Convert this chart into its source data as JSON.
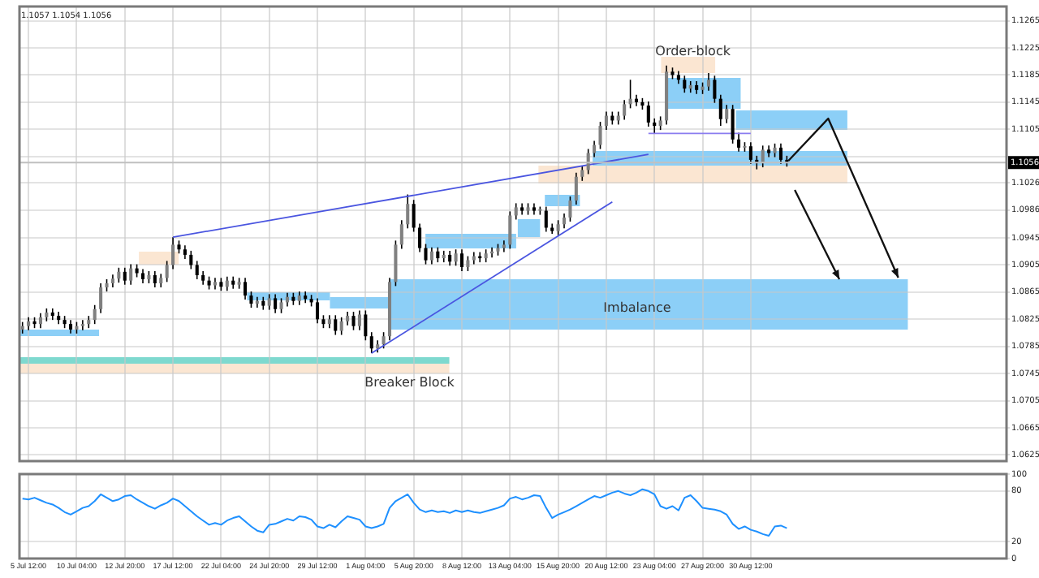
{
  "chart_data": [
    {
      "type": "candlestick",
      "title": "1.1057 1.1054 1.1056",
      "grid": true,
      "tick_labels": "y",
      "categories": [
        null,
        null,
        null,
        null,
        null,
        null,
        null,
        null,
        null,
        null,
        null,
        null,
        null,
        null,
        null,
        null,
        null,
        null,
        null,
        null,
        null,
        null,
        null,
        null,
        null,
        null,
        null,
        null,
        null,
        null,
        null,
        null,
        null,
        null,
        null,
        null,
        null,
        null,
        null,
        null,
        null,
        null,
        null,
        null,
        null,
        null,
        null,
        null,
        null,
        null,
        null,
        null,
        null,
        null,
        null,
        null,
        null,
        null,
        null,
        null,
        null,
        null,
        null,
        null,
        null,
        null,
        null,
        null,
        null,
        null,
        null,
        null,
        null,
        null,
        null,
        null,
        null,
        null,
        null,
        null,
        null,
        null,
        null,
        null,
        null,
        null,
        null,
        null,
        null,
        null,
        null,
        null,
        null,
        null,
        null,
        null,
        null,
        null,
        null,
        null,
        null,
        null,
        null,
        null,
        null,
        null,
        null,
        null,
        null,
        null,
        null,
        null,
        null,
        null,
        null,
        null,
        null,
        null,
        null,
        null,
        null,
        null,
        null,
        null,
        null,
        null,
        null,
        null,
        null,
        null,
        null,
        null,
        null,
        null,
        null,
        null,
        null,
        null,
        null,
        null,
        null,
        null,
        null,
        null,
        null,
        null,
        null,
        null,
        null,
        null,
        null,
        null,
        null,
        null,
        null,
        null,
        null,
        null,
        null,
        null,
        null,
        null,
        null,
        null
      ],
      "ohlc": [
        [
          1.081,
          1.0821,
          1.0804,
          1.0815
        ],
        [
          1.0815,
          1.0828,
          1.0809,
          1.0822
        ],
        [
          1.0822,
          1.0828,
          1.0812,
          1.0818
        ],
        [
          1.0818,
          1.0834,
          1.0812,
          1.0828
        ],
        [
          1.0828,
          1.0841,
          1.0822,
          1.0835
        ],
        [
          1.0835,
          1.0841,
          1.0824,
          1.083
        ],
        [
          1.083,
          1.0836,
          1.0818,
          1.0824
        ],
        [
          1.0824,
          1.083,
          1.0812,
          1.0818
        ],
        [
          1.0818,
          1.0824,
          1.0804,
          1.081
        ],
        [
          1.081,
          1.0821,
          1.0804,
          1.0815
        ],
        [
          1.0815,
          1.0824,
          1.0809,
          1.0818
        ],
        [
          1.0818,
          1.083,
          1.0812,
          1.0824
        ],
        [
          1.0824,
          1.0846,
          1.0818,
          1.084
        ],
        [
          1.084,
          1.0878,
          1.0834,
          1.0872
        ],
        [
          1.0872,
          1.0884,
          1.0866,
          1.0878
        ],
        [
          1.0878,
          1.0891,
          1.0872,
          1.0885
        ],
        [
          1.0885,
          1.0901,
          1.0879,
          1.0895
        ],
        [
          1.0895,
          1.0901,
          1.0876,
          1.0882
        ],
        [
          1.0882,
          1.0906,
          1.0876,
          1.09
        ],
        [
          1.09,
          1.0906,
          1.0887,
          1.0893
        ],
        [
          1.0893,
          1.0899,
          1.0878,
          1.0884
        ],
        [
          1.0884,
          1.0896,
          1.0878,
          1.089
        ],
        [
          1.089,
          1.0896,
          1.0872,
          1.0878
        ],
        [
          1.0878,
          1.0892,
          1.0872,
          1.0886
        ],
        [
          1.0886,
          1.0911,
          1.088,
          1.0905
        ],
        [
          1.0905,
          1.0946,
          1.0899,
          1.0935
        ],
        [
          1.0935,
          1.0941,
          1.0922,
          1.0928
        ],
        [
          1.0928,
          1.0934,
          1.0914,
          1.092
        ],
        [
          1.092,
          1.0926,
          1.0899,
          1.0905
        ],
        [
          1.0905,
          1.0911,
          1.0884,
          1.089
        ],
        [
          1.089,
          1.0896,
          1.0876,
          1.0882
        ],
        [
          1.0882,
          1.0888,
          1.0869,
          1.0875
        ],
        [
          1.0875,
          1.0886,
          1.0869,
          1.088
        ],
        [
          1.088,
          1.0886,
          1.0867,
          1.0873
        ],
        [
          1.0873,
          1.0888,
          1.0867,
          1.0882
        ],
        [
          1.0882,
          1.0888,
          1.087,
          1.0876
        ],
        [
          1.0876,
          1.0886,
          1.087,
          1.088
        ],
        [
          1.088,
          1.0886,
          1.0854,
          1.086
        ],
        [
          1.086,
          1.0866,
          1.0842,
          1.0848
        ],
        [
          1.0848,
          1.0858,
          1.0842,
          1.0852
        ],
        [
          1.0852,
          1.0858,
          1.0839,
          1.0845
        ],
        [
          1.0845,
          1.0862,
          1.0839,
          1.0856
        ],
        [
          1.0856,
          1.0862,
          1.0834,
          1.084
        ],
        [
          1.084,
          1.0856,
          1.0834,
          1.085
        ],
        [
          1.085,
          1.0864,
          1.0844,
          1.0858
        ],
        [
          1.0858,
          1.0864,
          1.0846,
          1.0852
        ],
        [
          1.0852,
          1.0866,
          1.0846,
          1.086
        ],
        [
          1.086,
          1.0866,
          1.0849,
          1.0855
        ],
        [
          1.0855,
          1.0861,
          1.0844,
          1.085
        ],
        [
          1.085,
          1.0856,
          1.0819,
          1.0825
        ],
        [
          1.0825,
          1.0831,
          1.0812,
          1.0818
        ],
        [
          1.0818,
          1.0831,
          1.0812,
          1.0825
        ],
        [
          1.0825,
          1.0831,
          1.0802,
          1.0808
        ],
        [
          1.0808,
          1.0828,
          1.0802,
          1.0822
        ],
        [
          1.0822,
          1.0836,
          1.0816,
          1.083
        ],
        [
          1.083,
          1.0836,
          1.0809,
          1.0815
        ],
        [
          1.0815,
          1.0838,
          1.0809,
          1.0832
        ],
        [
          1.0832,
          1.0838,
          1.0794,
          1.08
        ],
        [
          1.08,
          1.0806,
          1.0775,
          1.0782
        ],
        [
          1.0782,
          1.0794,
          1.0776,
          1.0788
        ],
        [
          1.0788,
          1.0806,
          1.0782,
          1.08
        ],
        [
          1.08,
          1.0886,
          1.0794,
          1.088
        ],
        [
          1.088,
          1.0941,
          1.0874,
          1.0935
        ],
        [
          1.0935,
          1.0971,
          1.0929,
          1.0965
        ],
        [
          1.0965,
          1.1009,
          1.0959,
          1.0995
        ],
        [
          1.0995,
          1.1001,
          1.0954,
          1.096
        ],
        [
          1.096,
          1.0966,
          1.0924,
          1.093
        ],
        [
          1.093,
          1.0936,
          1.0906,
          1.0912
        ],
        [
          1.0912,
          1.0931,
          1.0906,
          1.0925
        ],
        [
          1.0925,
          1.0931,
          1.0909,
          1.0915
        ],
        [
          1.0915,
          1.0926,
          1.0909,
          1.092
        ],
        [
          1.092,
          1.0926,
          1.0904,
          1.091
        ],
        [
          1.091,
          1.0928,
          1.0904,
          1.0922
        ],
        [
          1.0922,
          1.0928,
          1.0896,
          1.0902
        ],
        [
          1.0902,
          1.0918,
          1.0896,
          1.0912
        ],
        [
          1.0912,
          1.0924,
          1.0906,
          1.0918
        ],
        [
          1.0918,
          1.0924,
          1.0909,
          1.0915
        ],
        [
          1.0915,
          1.0928,
          1.0909,
          1.0922
        ],
        [
          1.0922,
          1.0931,
          1.0916,
          1.0925
        ],
        [
          1.0925,
          1.0936,
          1.0919,
          1.093
        ],
        [
          1.093,
          1.0941,
          1.0924,
          1.0935
        ],
        [
          1.0935,
          1.0984,
          1.0929,
          1.0978
        ],
        [
          1.0978,
          1.0996,
          1.0972,
          1.099
        ],
        [
          1.099,
          1.0996,
          1.0979,
          1.0985
        ],
        [
          1.0985,
          1.0996,
          1.0979,
          1.099
        ],
        [
          1.099,
          1.0996,
          1.0979,
          1.0985
        ],
        [
          1.0985,
          1.0991,
          1.0979,
          1.0985
        ],
        [
          1.0985,
          1.0991,
          1.0954,
          1.096
        ],
        [
          1.096,
          1.0966,
          1.0951,
          1.0955
        ],
        [
          1.0955,
          1.0971,
          1.0949,
          1.0965
        ],
        [
          1.0965,
          1.0981,
          1.0959,
          1.0975
        ],
        [
          1.0975,
          1.1006,
          1.0969,
          1.1
        ],
        [
          1.1,
          1.1041,
          1.0994,
          1.1035
        ],
        [
          1.1035,
          1.1051,
          1.1029,
          1.1045
        ],
        [
          1.1045,
          1.1076,
          1.1039,
          1.107
        ],
        [
          1.107,
          1.1088,
          1.1064,
          1.1082
        ],
        [
          1.1082,
          1.1116,
          1.1076,
          1.111
        ],
        [
          1.111,
          1.1131,
          1.1104,
          1.1125
        ],
        [
          1.1125,
          1.1131,
          1.1112,
          1.1118
        ],
        [
          1.1118,
          1.1131,
          1.1112,
          1.1125
        ],
        [
          1.1125,
          1.1148,
          1.1119,
          1.1142
        ],
        [
          1.1142,
          1.1178,
          1.1136,
          1.115
        ],
        [
          1.115,
          1.1156,
          1.1139,
          1.1145
        ],
        [
          1.1145,
          1.1151,
          1.1134,
          1.114
        ],
        [
          1.114,
          1.1146,
          1.1109,
          1.1115
        ],
        [
          1.1115,
          1.1121,
          1.1099,
          1.111
        ],
        [
          1.111,
          1.1124,
          1.1104,
          1.1118
        ],
        [
          1.1118,
          1.1199,
          1.1112,
          1.119
        ],
        [
          1.119,
          1.1196,
          1.1179,
          1.1185
        ],
        [
          1.1185,
          1.1191,
          1.1172,
          1.1178
        ],
        [
          1.1178,
          1.1184,
          1.1159,
          1.1165
        ],
        [
          1.1165,
          1.1176,
          1.1159,
          1.117
        ],
        [
          1.117,
          1.1176,
          1.1157,
          1.1163
        ],
        [
          1.1163,
          1.1174,
          1.1157,
          1.1168
        ],
        [
          1.1168,
          1.1188,
          1.1162,
          1.1178
        ],
        [
          1.1178,
          1.1184,
          1.1144,
          1.115
        ],
        [
          1.115,
          1.1156,
          1.111,
          1.112
        ],
        [
          1.112,
          1.1141,
          1.1114,
          1.1135
        ],
        [
          1.1135,
          1.1141,
          1.1084,
          1.109
        ],
        [
          1.109,
          1.11,
          1.1072,
          1.1078
        ],
        [
          1.1078,
          1.1086,
          1.1072,
          1.108
        ],
        [
          1.108,
          1.1086,
          1.1054,
          1.106
        ],
        [
          1.106,
          1.1066,
          1.1046,
          1.1055
        ],
        [
          1.1055,
          1.1081,
          1.1049,
          1.1075
        ],
        [
          1.1075,
          1.1081,
          1.1064,
          1.107
        ],
        [
          1.107,
          1.1084,
          1.1064,
          1.1078
        ],
        [
          1.1078,
          1.1084,
          1.1054,
          1.106
        ],
        [
          1.106,
          1.1066,
          1.105,
          1.1056
        ],
        null,
        null,
        null,
        null,
        null,
        null,
        null,
        null,
        null,
        null,
        null,
        null,
        null,
        null,
        null,
        null,
        null,
        null,
        null,
        null,
        null,
        null,
        null,
        null,
        null,
        null,
        null,
        null,
        null,
        null,
        null,
        null,
        null,
        null,
        null,
        null
      ],
      "ylim": [
        1.0616,
        1.1286
      ],
      "yticks": [
        1.0625,
        1.0665,
        1.0705,
        1.0745,
        1.0785,
        1.0825,
        1.0865,
        1.0905,
        1.0945,
        1.0986,
        1.1026,
        {
          "value": 1.1065,
          "label": null
        },
        1.1105,
        1.1145,
        1.1185,
        1.1225,
        1.1265
      ],
      "ref_lines": [
        {
          "axis": "y",
          "value": 1.1056,
          "label": "1.1056"
        }
      ],
      "annotations": [
        "Order-block",
        "Imbalance",
        "Breaker Block"
      ],
      "series": [
        {
          "type": "line",
          "color": "#4a55e0",
          "values": [
            null,
            null,
            null,
            null,
            null,
            null,
            null,
            null,
            null,
            null,
            null,
            null,
            null,
            null,
            null,
            null,
            null,
            null,
            null,
            null,
            null,
            null,
            null,
            null,
            null,
            1.0946,
            null,
            null,
            null,
            null,
            null,
            null,
            null,
            null,
            null,
            null,
            null,
            null,
            null,
            null,
            null,
            null,
            null,
            null,
            null,
            null,
            null,
            null,
            null,
            null,
            null,
            null,
            null,
            null,
            null,
            null,
            null,
            null,
            null,
            null,
            null,
            null,
            null,
            null,
            null,
            null,
            null,
            null,
            null,
            null,
            null,
            null,
            null,
            null,
            null,
            null,
            null,
            null,
            null,
            null,
            null,
            null,
            null,
            null,
            null,
            null,
            null,
            null,
            null,
            null,
            null,
            null,
            null,
            null,
            null,
            null,
            null,
            null,
            null,
            null,
            null,
            null,
            null,
            null,
            1.1068,
            null,
            null,
            null,
            null,
            null,
            null,
            null,
            null,
            null,
            null,
            null,
            null,
            null,
            null,
            null,
            null,
            null,
            null,
            null,
            null,
            null,
            null,
            null,
            null,
            null,
            null,
            null,
            null,
            null,
            null,
            null,
            null,
            null,
            null,
            null,
            null,
            null,
            null,
            null,
            null,
            null,
            null,
            null,
            null,
            null,
            null,
            null,
            null,
            null,
            null,
            null,
            null,
            null,
            null,
            null,
            null,
            null,
            null,
            null
          ]
        },
        {
          "type": "line",
          "color": "#4a55e0",
          "values": [
            null,
            null,
            null,
            null,
            null,
            null,
            null,
            null,
            null,
            null,
            null,
            null,
            null,
            null,
            null,
            null,
            null,
            null,
            null,
            null,
            null,
            null,
            null,
            null,
            null,
            null,
            null,
            null,
            null,
            null,
            null,
            null,
            null,
            null,
            null,
            null,
            null,
            null,
            null,
            null,
            null,
            null,
            null,
            null,
            null,
            null,
            null,
            null,
            null,
            null,
            null,
            null,
            null,
            null,
            null,
            null,
            null,
            null,
            1.0775,
            null,
            null,
            null,
            null,
            null,
            null,
            null,
            null,
            null,
            null,
            null,
            null,
            null,
            null,
            null,
            null,
            null,
            null,
            null,
            null,
            null,
            null,
            null,
            null,
            null,
            null,
            null,
            null,
            null,
            null,
            null,
            null,
            null,
            null,
            null,
            null,
            null,
            null,
            null,
            1.0998,
            null,
            null,
            null,
            null,
            null,
            null,
            null,
            null,
            null,
            null,
            null,
            null,
            null,
            null,
            null,
            null,
            null,
            null,
            null,
            null,
            null,
            null,
            null,
            null,
            null,
            null,
            null,
            null,
            null,
            null,
            null,
            null,
            null,
            null,
            null,
            null,
            null,
            null,
            null,
            null,
            null,
            null,
            null,
            null,
            null,
            null,
            null,
            null,
            null,
            null,
            null,
            null,
            null,
            null,
            null,
            null,
            null,
            null,
            null,
            null,
            null,
            null,
            null,
            null,
            null
          ]
        },
        {
          "type": "line",
          "color": "#8a7cf0",
          "values": [
            null,
            null,
            null,
            null,
            null,
            null,
            null,
            null,
            null,
            null,
            null,
            null,
            null,
            null,
            null,
            null,
            null,
            null,
            null,
            null,
            null,
            null,
            null,
            null,
            null,
            null,
            null,
            null,
            null,
            null,
            null,
            null,
            null,
            null,
            null,
            null,
            null,
            null,
            null,
            null,
            null,
            null,
            null,
            null,
            null,
            null,
            null,
            null,
            null,
            null,
            null,
            null,
            null,
            null,
            null,
            null,
            null,
            null,
            null,
            null,
            null,
            null,
            null,
            null,
            null,
            null,
            null,
            null,
            null,
            null,
            null,
            null,
            null,
            null,
            null,
            null,
            null,
            null,
            null,
            null,
            null,
            null,
            null,
            null,
            null,
            null,
            null,
            null,
            null,
            null,
            null,
            null,
            null,
            null,
            null,
            null,
            null,
            null,
            null,
            null,
            null,
            null,
            null,
            null,
            1.1099,
            null,
            null,
            null,
            null,
            null,
            null,
            null,
            null,
            null,
            null,
            null,
            null,
            null,
            null,
            null,
            null,
            1.1099,
            null,
            null,
            null,
            null,
            null,
            null,
            null,
            null,
            null,
            null,
            null,
            null,
            null,
            null,
            null,
            null,
            null,
            null,
            null,
            null,
            null,
            null,
            null,
            null,
            null,
            null,
            null,
            null,
            null,
            null,
            null,
            null,
            null,
            null,
            null,
            null,
            null,
            null,
            null,
            null,
            null,
            null
          ]
        }
      ]
    },
    {
      "type": "line",
      "grid": true,
      "marker": "none",
      "categories": [
        null,
        "5 Jul 12:00",
        null,
        null,
        null,
        null,
        null,
        null,
        null,
        "10 Jul 04:00",
        null,
        null,
        null,
        null,
        null,
        null,
        null,
        "12 Jul 20:00",
        null,
        null,
        null,
        null,
        null,
        null,
        null,
        "17 Jul 12:00",
        null,
        null,
        null,
        null,
        null,
        null,
        null,
        "22 Jul 04:00",
        null,
        null,
        null,
        null,
        null,
        null,
        null,
        "24 Jul 20:00",
        null,
        null,
        null,
        null,
        null,
        null,
        null,
        "29 Jul 12:00",
        null,
        null,
        null,
        null,
        null,
        null,
        null,
        "1 Aug 04:00",
        null,
        null,
        null,
        null,
        null,
        null,
        null,
        "5 Aug 20:00",
        null,
        null,
        null,
        null,
        null,
        null,
        null,
        "8 Aug 12:00",
        null,
        null,
        null,
        null,
        null,
        null,
        null,
        "13 Aug 04:00",
        null,
        null,
        null,
        null,
        null,
        null,
        null,
        "15 Aug 20:00",
        null,
        null,
        null,
        null,
        null,
        null,
        null,
        "20 Aug 12:00",
        null,
        null,
        null,
        null,
        null,
        null,
        null,
        "23 Aug 04:00",
        null,
        null,
        null,
        null,
        null,
        null,
        null,
        "27 Aug 20:00",
        null,
        null,
        null,
        null,
        null,
        null,
        null,
        "30 Aug 12:00",
        null,
        null,
        null,
        null,
        null,
        null,
        null,
        null,
        null,
        null,
        null,
        null,
        null,
        null,
        null,
        null,
        null,
        null,
        null,
        null,
        null,
        null,
        null,
        null,
        null,
        null,
        null,
        null,
        null,
        null,
        null,
        null,
        null,
        null,
        null,
        null,
        null,
        null,
        null,
        null,
        null,
        null
      ],
      "series": [
        {
          "color": "#1e90ff",
          "values": [
            71,
            70,
            72,
            69,
            66,
            64,
            60,
            55,
            52,
            56,
            60,
            62,
            68,
            76,
            72,
            68,
            70,
            74,
            75,
            70,
            66,
            62,
            59,
            63,
            66,
            71,
            68,
            62,
            56,
            50,
            45,
            40,
            42,
            40,
            45,
            48,
            50,
            44,
            38,
            33,
            31,
            40,
            41,
            44,
            47,
            45,
            50,
            49,
            46,
            38,
            36,
            40,
            37,
            44,
            50,
            48,
            46,
            38,
            36,
            38,
            41,
            60,
            68,
            72,
            76,
            66,
            58,
            55,
            57,
            55,
            56,
            54,
            57,
            55,
            57,
            55,
            54,
            56,
            58,
            60,
            63,
            71,
            73,
            70,
            72,
            75,
            74,
            60,
            48,
            52,
            55,
            58,
            62,
            66,
            70,
            74,
            72,
            75,
            78,
            80,
            77,
            75,
            78,
            82,
            80,
            76,
            62,
            59,
            62,
            57,
            72,
            75,
            68,
            60,
            59,
            58,
            56,
            52,
            41,
            35,
            38,
            34,
            32,
            29,
            27,
            38,
            39,
            36,
            null,
            null,
            null,
            null,
            null,
            null,
            null,
            null,
            null,
            null,
            null,
            null,
            null,
            null,
            null,
            null,
            null,
            null,
            null,
            null,
            null,
            null,
            null,
            null,
            null,
            null,
            null,
            null,
            null,
            null,
            null,
            null,
            null,
            null,
            null,
            null
          ]
        }
      ],
      "ylim": [
        0,
        100
      ],
      "yticks": [
        0,
        20,
        80,
        100
      ]
    }
  ]
}
